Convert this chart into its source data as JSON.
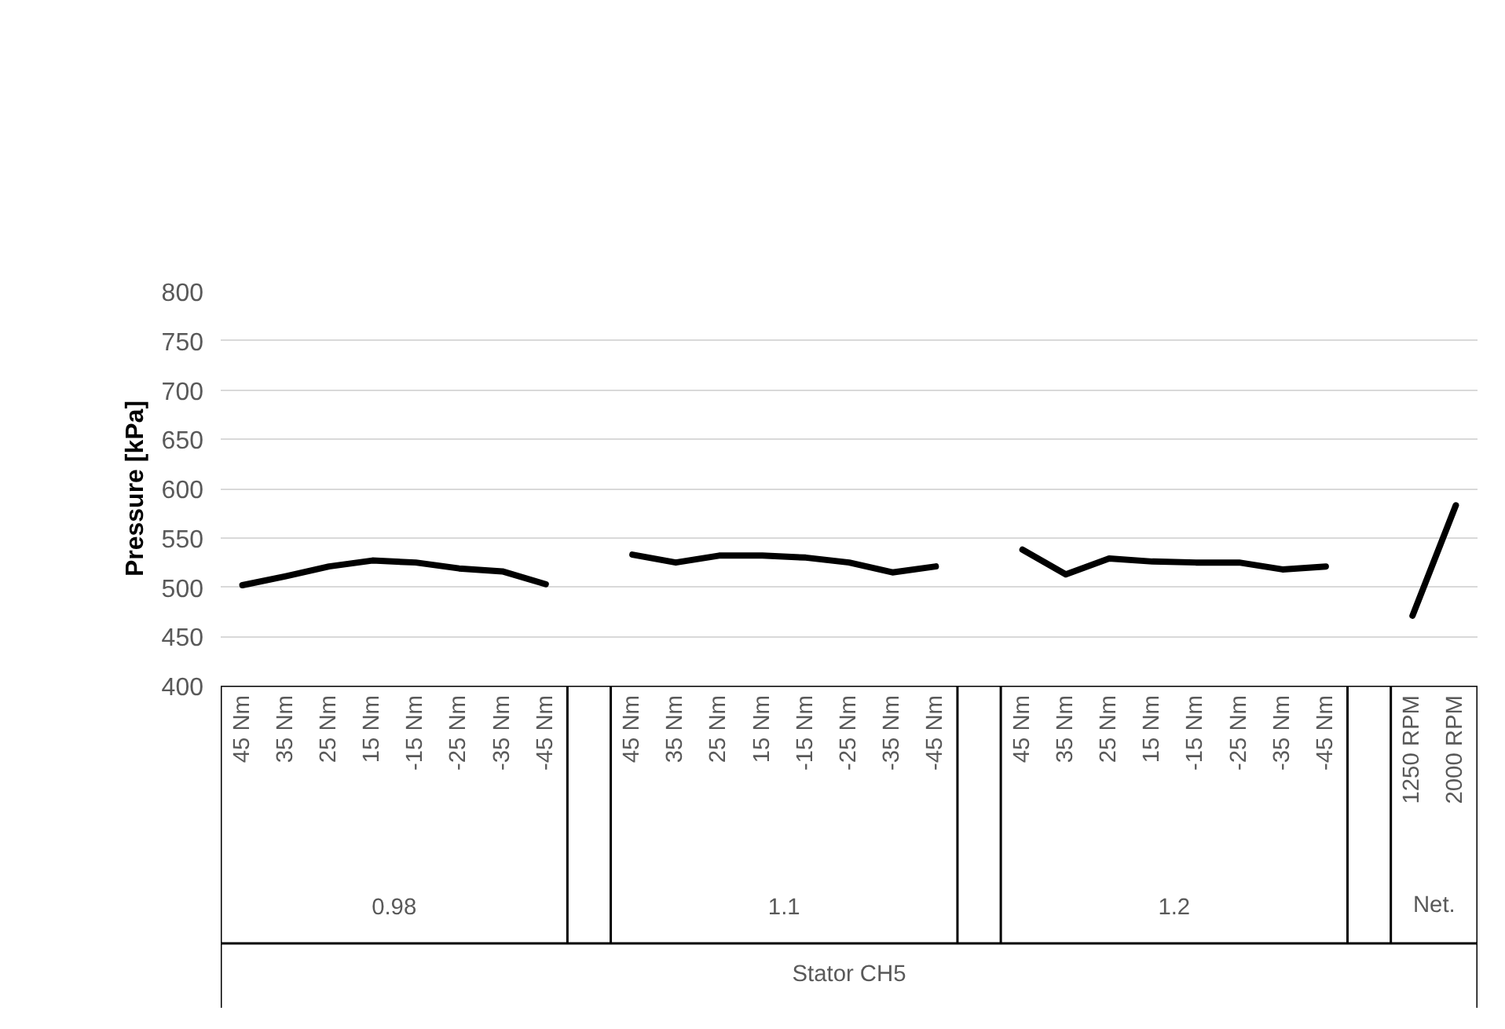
{
  "chart_data": {
    "type": "line",
    "ylabel": "Pressure [kPa]",
    "categories": [
      "45 Nm",
      "35 Nm",
      "25 Nm",
      "15 Nm",
      "-15 Nm",
      "-25 Nm",
      "-35 Nm",
      "-45 Nm",
      null,
      "45 Nm",
      "35 Nm",
      "25 Nm",
      "15 Nm",
      "-15 Nm",
      "-25 Nm",
      "-35 Nm",
      "-45 Nm",
      null,
      "45 Nm",
      "35 Nm",
      "25 Nm",
      "15 Nm",
      "-15 Nm",
      "-25 Nm",
      "-35 Nm",
      "-45 Nm",
      null,
      "1250 RPM",
      "2000 RPM"
    ],
    "values": [
      502,
      511,
      521,
      527,
      525,
      519,
      516,
      503,
      null,
      533,
      525,
      532,
      532,
      530,
      525,
      515,
      521,
      null,
      538,
      513,
      529,
      526,
      525,
      525,
      518,
      521,
      null,
      471,
      583
    ],
    "color": "#000000",
    "ylim": [
      400,
      800
    ],
    "yticks": [
      400,
      450,
      500,
      550,
      600,
      650,
      700,
      750,
      800
    ],
    "grid": "y",
    "annotations": [
      "0.98",
      "1.1",
      "1.2",
      "Net.",
      "Stator CH5"
    ]
  }
}
